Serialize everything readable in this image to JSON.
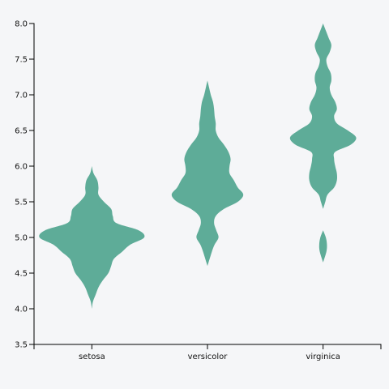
{
  "chart_data": {
    "type": "violin",
    "title": "",
    "xlabel": "",
    "ylabel": "",
    "categories": [
      "setosa",
      "versicolor",
      "virginica"
    ],
    "ylim": [
      3.5,
      8.0
    ],
    "yticks": [
      "3.5",
      "4.0",
      "4.5",
      "5.0",
      "5.5",
      "6.0",
      "6.5",
      "7.0",
      "7.5",
      "8.0"
    ],
    "grid": false,
    "color": "#5eac98",
    "violins": [
      {
        "category": "setosa",
        "density": [
          [
            4.0,
            0.0
          ],
          [
            4.1,
            0.02
          ],
          [
            4.2,
            0.07
          ],
          [
            4.3,
            0.12
          ],
          [
            4.4,
            0.2
          ],
          [
            4.5,
            0.3
          ],
          [
            4.6,
            0.35
          ],
          [
            4.7,
            0.4
          ],
          [
            4.8,
            0.55
          ],
          [
            4.9,
            0.7
          ],
          [
            5.0,
            0.95
          ],
          [
            5.1,
            0.85
          ],
          [
            5.2,
            0.45
          ],
          [
            5.3,
            0.38
          ],
          [
            5.4,
            0.35
          ],
          [
            5.5,
            0.22
          ],
          [
            5.6,
            0.12
          ],
          [
            5.7,
            0.12
          ],
          [
            5.8,
            0.1
          ],
          [
            5.9,
            0.03
          ],
          [
            6.0,
            0.0
          ]
        ]
      },
      {
        "category": "versicolor",
        "density": [
          [
            4.6,
            0.0
          ],
          [
            4.8,
            0.08
          ],
          [
            4.9,
            0.13
          ],
          [
            5.0,
            0.2
          ],
          [
            5.1,
            0.16
          ],
          [
            5.2,
            0.12
          ],
          [
            5.3,
            0.15
          ],
          [
            5.4,
            0.3
          ],
          [
            5.5,
            0.55
          ],
          [
            5.6,
            0.65
          ],
          [
            5.7,
            0.55
          ],
          [
            5.8,
            0.48
          ],
          [
            5.9,
            0.4
          ],
          [
            6.0,
            0.4
          ],
          [
            6.1,
            0.42
          ],
          [
            6.2,
            0.38
          ],
          [
            6.3,
            0.3
          ],
          [
            6.4,
            0.2
          ],
          [
            6.5,
            0.15
          ],
          [
            6.6,
            0.15
          ],
          [
            6.7,
            0.13
          ],
          [
            6.8,
            0.12
          ],
          [
            6.9,
            0.1
          ],
          [
            7.0,
            0.06
          ],
          [
            7.1,
            0.03
          ],
          [
            7.2,
            0.0
          ]
        ]
      },
      {
        "category": "virginica",
        "density": [
          [
            4.65,
            0.0
          ],
          [
            4.8,
            0.06
          ],
          [
            4.9,
            0.07
          ],
          [
            5.0,
            0.05
          ],
          [
            5.1,
            0.0
          ]
        ],
        "density_main": [
          [
            5.4,
            0.0
          ],
          [
            5.5,
            0.04
          ],
          [
            5.6,
            0.08
          ],
          [
            5.7,
            0.2
          ],
          [
            5.8,
            0.25
          ],
          [
            5.9,
            0.25
          ],
          [
            6.0,
            0.22
          ],
          [
            6.1,
            0.2
          ],
          [
            6.2,
            0.22
          ],
          [
            6.3,
            0.5
          ],
          [
            6.4,
            0.6
          ],
          [
            6.5,
            0.45
          ],
          [
            6.6,
            0.25
          ],
          [
            6.7,
            0.2
          ],
          [
            6.8,
            0.25
          ],
          [
            6.9,
            0.22
          ],
          [
            7.0,
            0.15
          ],
          [
            7.1,
            0.12
          ],
          [
            7.2,
            0.15
          ],
          [
            7.3,
            0.14
          ],
          [
            7.4,
            0.08
          ],
          [
            7.5,
            0.06
          ],
          [
            7.6,
            0.12
          ],
          [
            7.7,
            0.15
          ],
          [
            7.8,
            0.1
          ],
          [
            7.9,
            0.05
          ],
          [
            8.0,
            0.0
          ]
        ]
      }
    ]
  }
}
